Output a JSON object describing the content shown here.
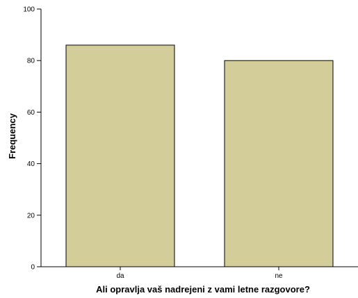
{
  "chart_data": {
    "type": "bar",
    "categories": [
      "da",
      "ne"
    ],
    "values": [
      86,
      80
    ],
    "xlabel": "Ali opravlja vaš nadrejeni z vami letne razgovore?",
    "ylabel": "Frequency",
    "ylim": [
      0,
      100
    ],
    "yticks": [
      0,
      20,
      40,
      60,
      80,
      100
    ],
    "bar_color": "#d3cd9a",
    "bar_edge_color": "#000000",
    "grid": false
  }
}
